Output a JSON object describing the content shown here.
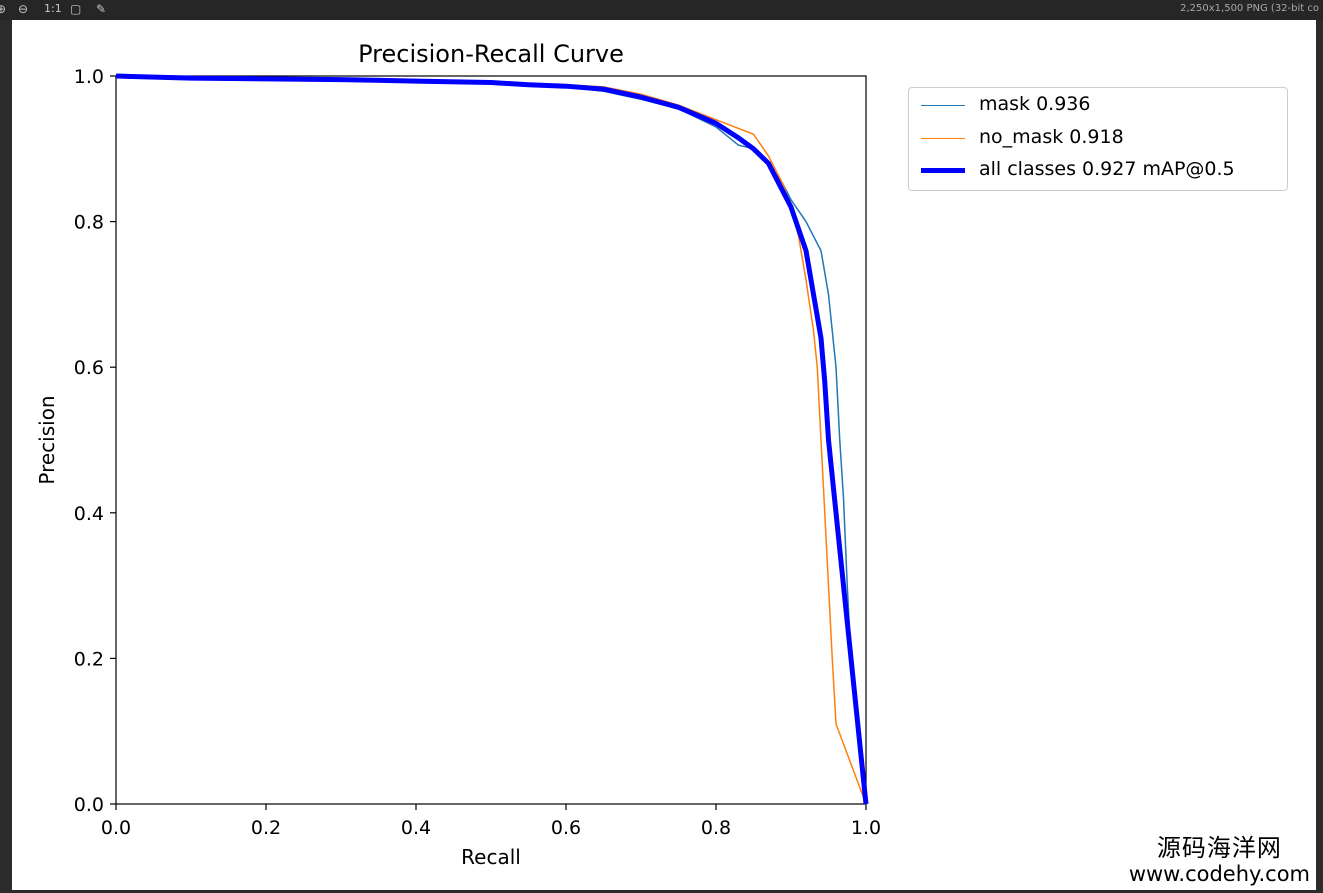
{
  "toolbar": {
    "zoom_label": "1:1",
    "image_info": "2,250x1,500 PNG (32-bit co"
  },
  "watermark": {
    "line1": "源码海洋网",
    "line2": "www.codehy.com"
  },
  "colors": {
    "mask": "#1f77b4",
    "no_mask": "#ff7f0e",
    "all": "#0000ff"
  },
  "chart_data": {
    "type": "line",
    "title": "Precision-Recall Curve",
    "xlabel": "Recall",
    "ylabel": "Precision",
    "xlim": [
      0,
      1
    ],
    "ylim": [
      0,
      1
    ],
    "xticks": [
      "0.0",
      "0.2",
      "0.4",
      "0.6",
      "0.8",
      "1.0"
    ],
    "yticks": [
      "0.0",
      "0.2",
      "0.4",
      "0.6",
      "0.8",
      "1.0"
    ],
    "legend_position": "outside-top-right",
    "grid": false,
    "series": [
      {
        "name": "mask 0.936",
        "color": "#1f77b4",
        "width": 1.5,
        "points": [
          [
            0,
            1.0
          ],
          [
            0.1,
            0.997
          ],
          [
            0.2,
            0.996
          ],
          [
            0.3,
            0.994
          ],
          [
            0.4,
            0.992
          ],
          [
            0.5,
            0.99
          ],
          [
            0.55,
            0.987
          ],
          [
            0.6,
            0.985
          ],
          [
            0.65,
            0.979
          ],
          [
            0.7,
            0.968
          ],
          [
            0.75,
            0.955
          ],
          [
            0.8,
            0.93
          ],
          [
            0.83,
            0.905
          ],
          [
            0.85,
            0.9
          ],
          [
            0.87,
            0.88
          ],
          [
            0.89,
            0.85
          ],
          [
            0.9,
            0.83
          ],
          [
            0.91,
            0.815
          ],
          [
            0.92,
            0.8
          ],
          [
            0.93,
            0.78
          ],
          [
            0.94,
            0.76
          ],
          [
            0.95,
            0.7
          ],
          [
            0.96,
            0.6
          ],
          [
            0.965,
            0.5
          ],
          [
            0.97,
            0.42
          ],
          [
            0.975,
            0.3
          ],
          [
            0.98,
            0.2
          ],
          [
            0.99,
            0.1
          ],
          [
            1.0,
            0.0
          ]
        ]
      },
      {
        "name": "no_mask 0.918",
        "color": "#ff7f0e",
        "width": 1.5,
        "points": [
          [
            0,
            1.0
          ],
          [
            0.1,
            0.998
          ],
          [
            0.2,
            0.997
          ],
          [
            0.3,
            0.996
          ],
          [
            0.4,
            0.995
          ],
          [
            0.5,
            0.992
          ],
          [
            0.55,
            0.99
          ],
          [
            0.6,
            0.988
          ],
          [
            0.65,
            0.985
          ],
          [
            0.7,
            0.975
          ],
          [
            0.75,
            0.96
          ],
          [
            0.8,
            0.94
          ],
          [
            0.85,
            0.92
          ],
          [
            0.87,
            0.89
          ],
          [
            0.89,
            0.85
          ],
          [
            0.9,
            0.82
          ],
          [
            0.91,
            0.78
          ],
          [
            0.92,
            0.72
          ],
          [
            0.93,
            0.65
          ],
          [
            0.935,
            0.6
          ],
          [
            0.94,
            0.5
          ],
          [
            0.945,
            0.4
          ],
          [
            0.95,
            0.3
          ],
          [
            0.955,
            0.2
          ],
          [
            0.96,
            0.11
          ],
          [
            1.0,
            0.0
          ]
        ]
      },
      {
        "name": "all classes 0.927 mAP@0.5",
        "color": "#0000ff",
        "width": 5,
        "points": [
          [
            0,
            1.0
          ],
          [
            0.1,
            0.997
          ],
          [
            0.2,
            0.996
          ],
          [
            0.3,
            0.995
          ],
          [
            0.4,
            0.993
          ],
          [
            0.5,
            0.991
          ],
          [
            0.55,
            0.988
          ],
          [
            0.6,
            0.986
          ],
          [
            0.65,
            0.982
          ],
          [
            0.7,
            0.971
          ],
          [
            0.75,
            0.957
          ],
          [
            0.8,
            0.935
          ],
          [
            0.83,
            0.915
          ],
          [
            0.85,
            0.9
          ],
          [
            0.87,
            0.88
          ],
          [
            0.89,
            0.84
          ],
          [
            0.9,
            0.82
          ],
          [
            0.91,
            0.79
          ],
          [
            0.92,
            0.76
          ],
          [
            0.93,
            0.7
          ],
          [
            0.94,
            0.64
          ],
          [
            0.945,
            0.58
          ],
          [
            0.95,
            0.5
          ],
          [
            0.96,
            0.4
          ],
          [
            0.97,
            0.3
          ],
          [
            0.98,
            0.2
          ],
          [
            0.99,
            0.1
          ],
          [
            1.0,
            0.0
          ]
        ]
      }
    ]
  }
}
